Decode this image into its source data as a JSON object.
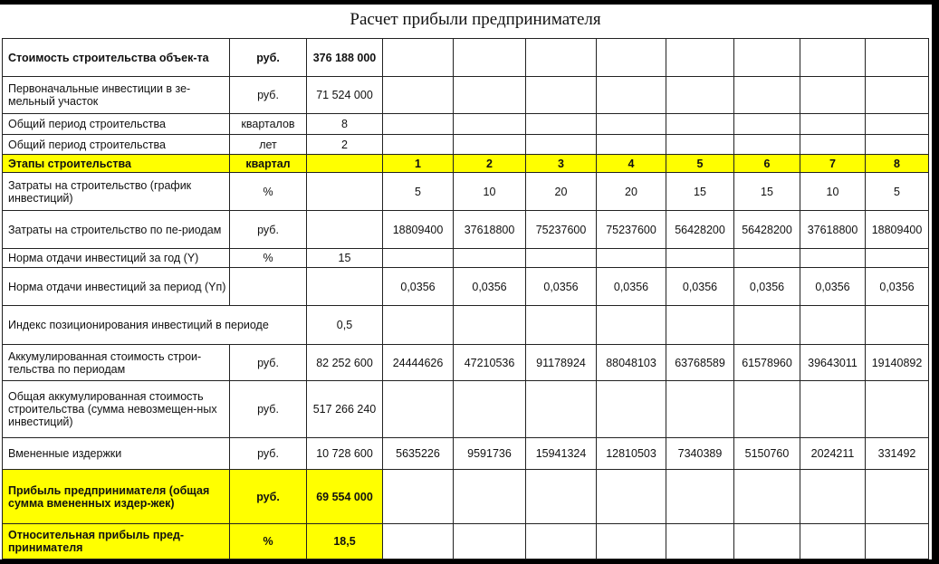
{
  "title": "Расчет прибыли предпринимателя",
  "colors": {
    "highlight": "#ffff00"
  },
  "rows": [
    {
      "label": "Стоимость строительства объек-та",
      "unit": "руб.",
      "value": "376 188 000",
      "cells": [
        "",
        "",
        "",
        "",
        "",
        "",
        "",
        ""
      ],
      "bold": true
    },
    {
      "label": "Первоначальные инвестиции в зе-мельный участок",
      "unit": "руб.",
      "value": "71 524 000",
      "cells": [
        "",
        "",
        "",
        "",
        "",
        "",
        "",
        ""
      ]
    },
    {
      "label": "Общий период строительства",
      "unit": "кварталов",
      "value": "8",
      "cells": [
        "",
        "",
        "",
        "",
        "",
        "",
        "",
        ""
      ]
    },
    {
      "label": "Общий период строительства",
      "unit": "лет",
      "value": "2",
      "cells": [
        "",
        "",
        "",
        "",
        "",
        "",
        "",
        ""
      ]
    },
    {
      "label": "Этапы строительства",
      "unit": "квартал",
      "value": "",
      "cells": [
        "1",
        "2",
        "3",
        "4",
        "5",
        "6",
        "7",
        "8"
      ],
      "highlight": "all"
    },
    {
      "label": "Затраты на строительство (график инвестиций)",
      "unit": "%",
      "value": "",
      "cells": [
        "5",
        "10",
        "20",
        "20",
        "15",
        "15",
        "10",
        "5"
      ]
    },
    {
      "label": "Затраты на строительство по пе-риодам",
      "unit": "руб.",
      "value": "",
      "cells": [
        "18809400",
        "37618800",
        "75237600",
        "75237600",
        "56428200",
        "56428200",
        "37618800",
        "18809400"
      ]
    },
    {
      "label": "Норма отдачи инвестиций за год (Y)",
      "unit": "%",
      "value": "15",
      "cells": [
        "",
        "",
        "",
        "",
        "",
        "",
        "",
        ""
      ]
    },
    {
      "label": "Норма отдачи инвестиций за период (Yп)",
      "unit": "",
      "value": "",
      "cells": [
        "0,0356",
        "0,0356",
        "0,0356",
        "0,0356",
        "0,0356",
        "0,0356",
        "0,0356",
        "0,0356"
      ]
    },
    {
      "label": "Индекс позиционирования инвестиций в периоде",
      "unit": null,
      "value": "0,5",
      "cells": [
        "",
        "",
        "",
        "",
        "",
        "",
        "",
        ""
      ]
    },
    {
      "label": "Аккумулированная стоимость строи-тельства по периодам",
      "unit": "руб.",
      "value": "82 252 600",
      "cells": [
        "24444626",
        "47210536",
        "91178924",
        "88048103",
        "63768589",
        "61578960",
        "39643011",
        "19140892"
      ]
    },
    {
      "label": "Общая аккумулированная стоимость строительства (сумма невозмещен-ных инвестиций)",
      "unit": "руб.",
      "value": "517 266 240",
      "cells": [
        "",
        "",
        "",
        "",
        "",
        "",
        "",
        ""
      ]
    },
    {
      "label": "Вмененные издержки",
      "unit": "руб.",
      "value": "10 728 600",
      "cells": [
        "5635226",
        "9591736",
        "15941324",
        "12810503",
        "7340389",
        "5150760",
        "2024211",
        "331492"
      ]
    },
    {
      "label": "Прибыль предпринимателя (общая сумма вмененных издер-жек)",
      "unit": "руб.",
      "value": "69 554 000",
      "cells": [
        "",
        "",
        "",
        "",
        "",
        "",
        "",
        ""
      ],
      "highlight": "first3"
    },
    {
      "label": "Относительная прибыль пред-принимателя",
      "unit": "%",
      "value": "18,5",
      "cells": [
        "",
        "",
        "",
        "",
        "",
        "",
        "",
        ""
      ],
      "highlight": "first3"
    }
  ]
}
